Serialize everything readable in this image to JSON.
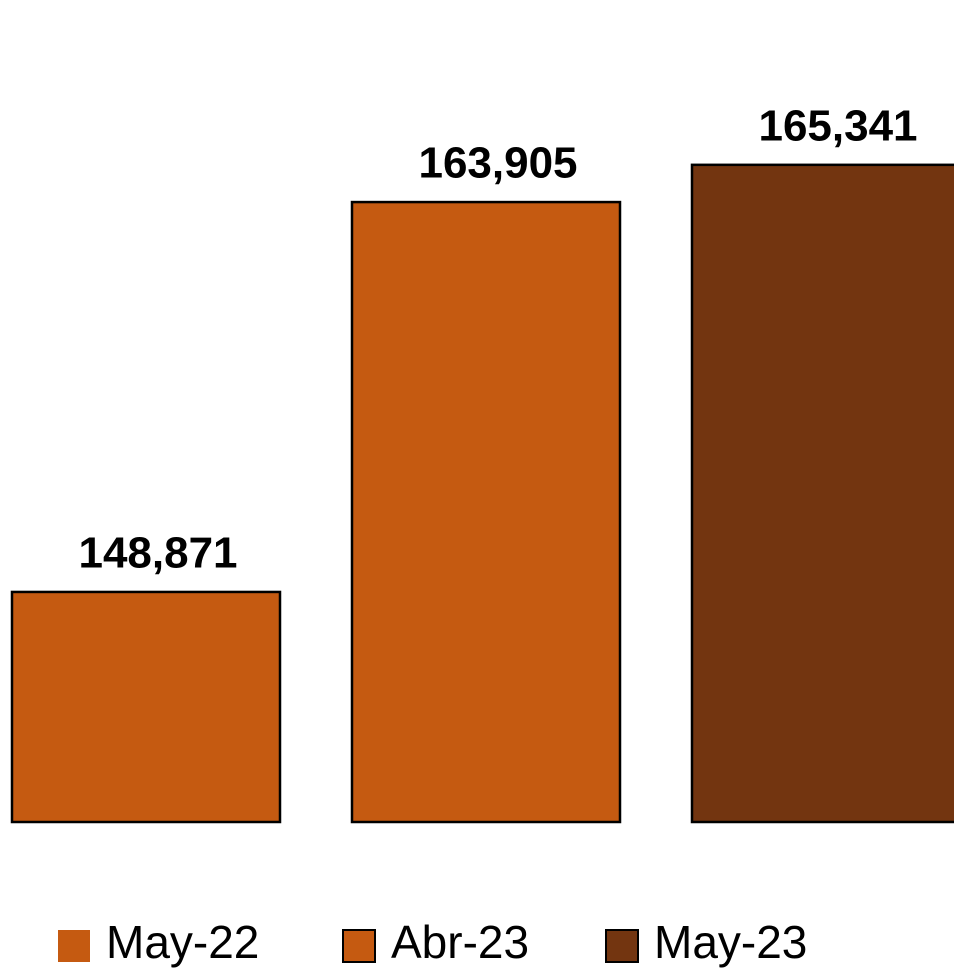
{
  "chart_data": {
    "type": "bar",
    "series": [
      {
        "name": "May-22",
        "color": "#C55A11",
        "values": [
          148871
        ],
        "value_labels": [
          "148,871"
        ]
      },
      {
        "name": "Abr-23",
        "color": "#C55A11",
        "values": [
          163905
        ],
        "value_labels": [
          "163,905"
        ]
      },
      {
        "name": "May-23",
        "color": "#733510",
        "values": [
          165341
        ],
        "value_labels": [
          "165,341"
        ]
      }
    ],
    "ylim": [
      140000,
      170000
    ],
    "grid": false,
    "legend": "bottom"
  }
}
